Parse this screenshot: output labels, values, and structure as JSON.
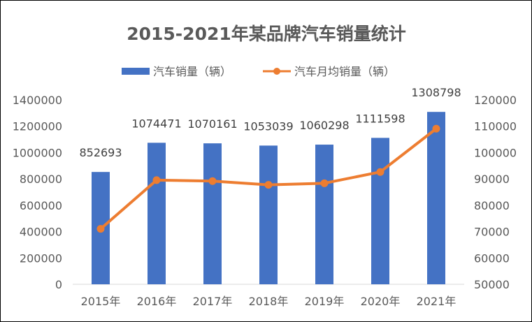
{
  "chart_data": {
    "type": "bar+line",
    "title": "2015-2021年某品牌汽车销量统计",
    "categories": [
      "2015年",
      "2016年",
      "2017年",
      "2018年",
      "2019年",
      "2020年",
      "2021年"
    ],
    "series": [
      {
        "name": "汽车销量（辆）",
        "type": "bar",
        "axis": "left",
        "color": "#4472C4",
        "values": [
          852693,
          1074471,
          1070161,
          1053039,
          1060298,
          1111598,
          1308798
        ],
        "data_labels": [
          "852693",
          "1074471",
          "1070161",
          "1053039",
          "1060298",
          "1111598",
          "1308798"
        ]
      },
      {
        "name": "汽车月均销量（辆）",
        "type": "line",
        "axis": "right",
        "color": "#ED7D31",
        "values": [
          71058,
          89539,
          89180,
          87753,
          88358,
          92633,
          109067
        ]
      }
    ],
    "y_left": {
      "min": 0,
      "max": 1400000,
      "step": 200000,
      "ticks": [
        "0",
        "200000",
        "400000",
        "600000",
        "800000",
        "1000000",
        "1200000",
        "1400000"
      ]
    },
    "y_right": {
      "min": 50000,
      "max": 120000,
      "step": 10000,
      "ticks": [
        "50000",
        "60000",
        "70000",
        "80000",
        "90000",
        "100000",
        "110000",
        "120000"
      ]
    },
    "legend_position": "top",
    "grid": false
  }
}
